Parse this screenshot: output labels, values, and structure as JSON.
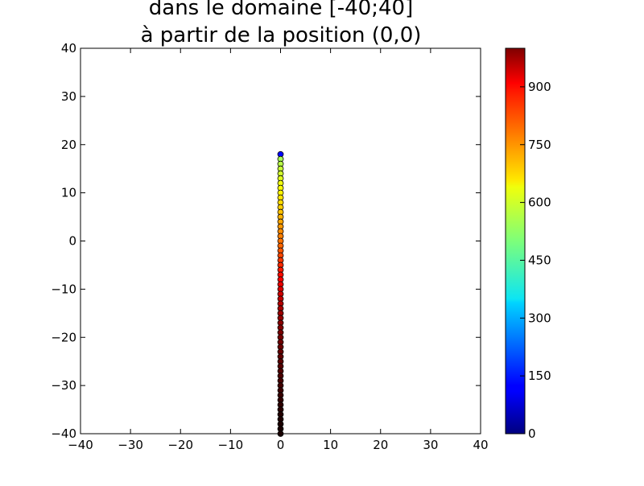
{
  "chart_data": {
    "type": "scatter",
    "title_lines": [
      "dans le domaine [-40;40]",
      "à partir de la position (0,0)"
    ],
    "xlim": [
      -40,
      40
    ],
    "ylim": [
      -40,
      40
    ],
    "xticks": [
      -40,
      -30,
      -20,
      -10,
      0,
      10,
      20,
      30,
      40
    ],
    "yticks": [
      -40,
      -30,
      -20,
      -10,
      0,
      10,
      20,
      30,
      40
    ],
    "xtick_labels": [
      "−40",
      "−30",
      "−20",
      "−10",
      "0",
      "10",
      "20",
      "30",
      "40"
    ],
    "ytick_labels": [
      "−40",
      "−30",
      "−20",
      "−10",
      "0",
      "10",
      "20",
      "30",
      "40"
    ],
    "grid": false,
    "colormap": "jet",
    "colorbar": {
      "range": [
        0,
        1000
      ],
      "ticks": [
        0,
        150,
        300,
        450,
        600,
        750,
        900
      ],
      "tick_labels": [
        "0",
        "150",
        "300",
        "450",
        "600",
        "750",
        "900"
      ]
    },
    "series": [
      {
        "x": [
          0,
          0,
          0,
          0,
          0,
          0,
          0,
          0,
          0,
          0,
          0,
          0,
          0,
          0,
          0,
          0,
          0,
          0,
          0,
          0,
          0,
          0,
          0,
          0,
          0,
          0,
          0,
          0,
          0,
          0,
          0,
          0,
          0,
          0,
          0,
          0,
          0,
          0,
          0,
          0,
          0,
          0,
          0,
          0,
          0,
          0,
          0,
          0,
          0,
          0,
          0,
          0,
          0,
          0,
          0,
          0,
          0,
          0,
          0
        ],
        "y": [
          18,
          17,
          16,
          15,
          14,
          13,
          12,
          11,
          10,
          9,
          8,
          7,
          6,
          5,
          4,
          3,
          2,
          1,
          0,
          -1,
          -2,
          -3,
          -4,
          -5,
          -6,
          -7,
          -8,
          -9,
          -10,
          -11,
          -12,
          -13,
          -14,
          -15,
          -16,
          -17,
          -18,
          -19,
          -20,
          -21,
          -22,
          -23,
          -24,
          -25,
          -26,
          -27,
          -28,
          -29,
          -30,
          -31,
          -32,
          -33,
          -34,
          -35,
          -36,
          -37,
          -38,
          -39,
          -40
        ],
        "c": [
          130,
          540,
          555,
          570,
          580,
          595,
          610,
          620,
          635,
          650,
          660,
          672,
          685,
          700,
          712,
          725,
          738,
          750,
          762,
          775,
          790,
          805,
          820,
          835,
          850,
          865,
          880,
          895,
          910,
          922,
          935,
          948,
          960,
          970,
          980,
          990,
          998,
          1005,
          1010,
          1015,
          1020,
          1025,
          1030,
          1035,
          1040,
          1045,
          1050,
          1055,
          1060,
          1065,
          1070,
          1075,
          1080,
          1085,
          1090,
          1095,
          1098,
          1100,
          1100
        ]
      }
    ]
  }
}
